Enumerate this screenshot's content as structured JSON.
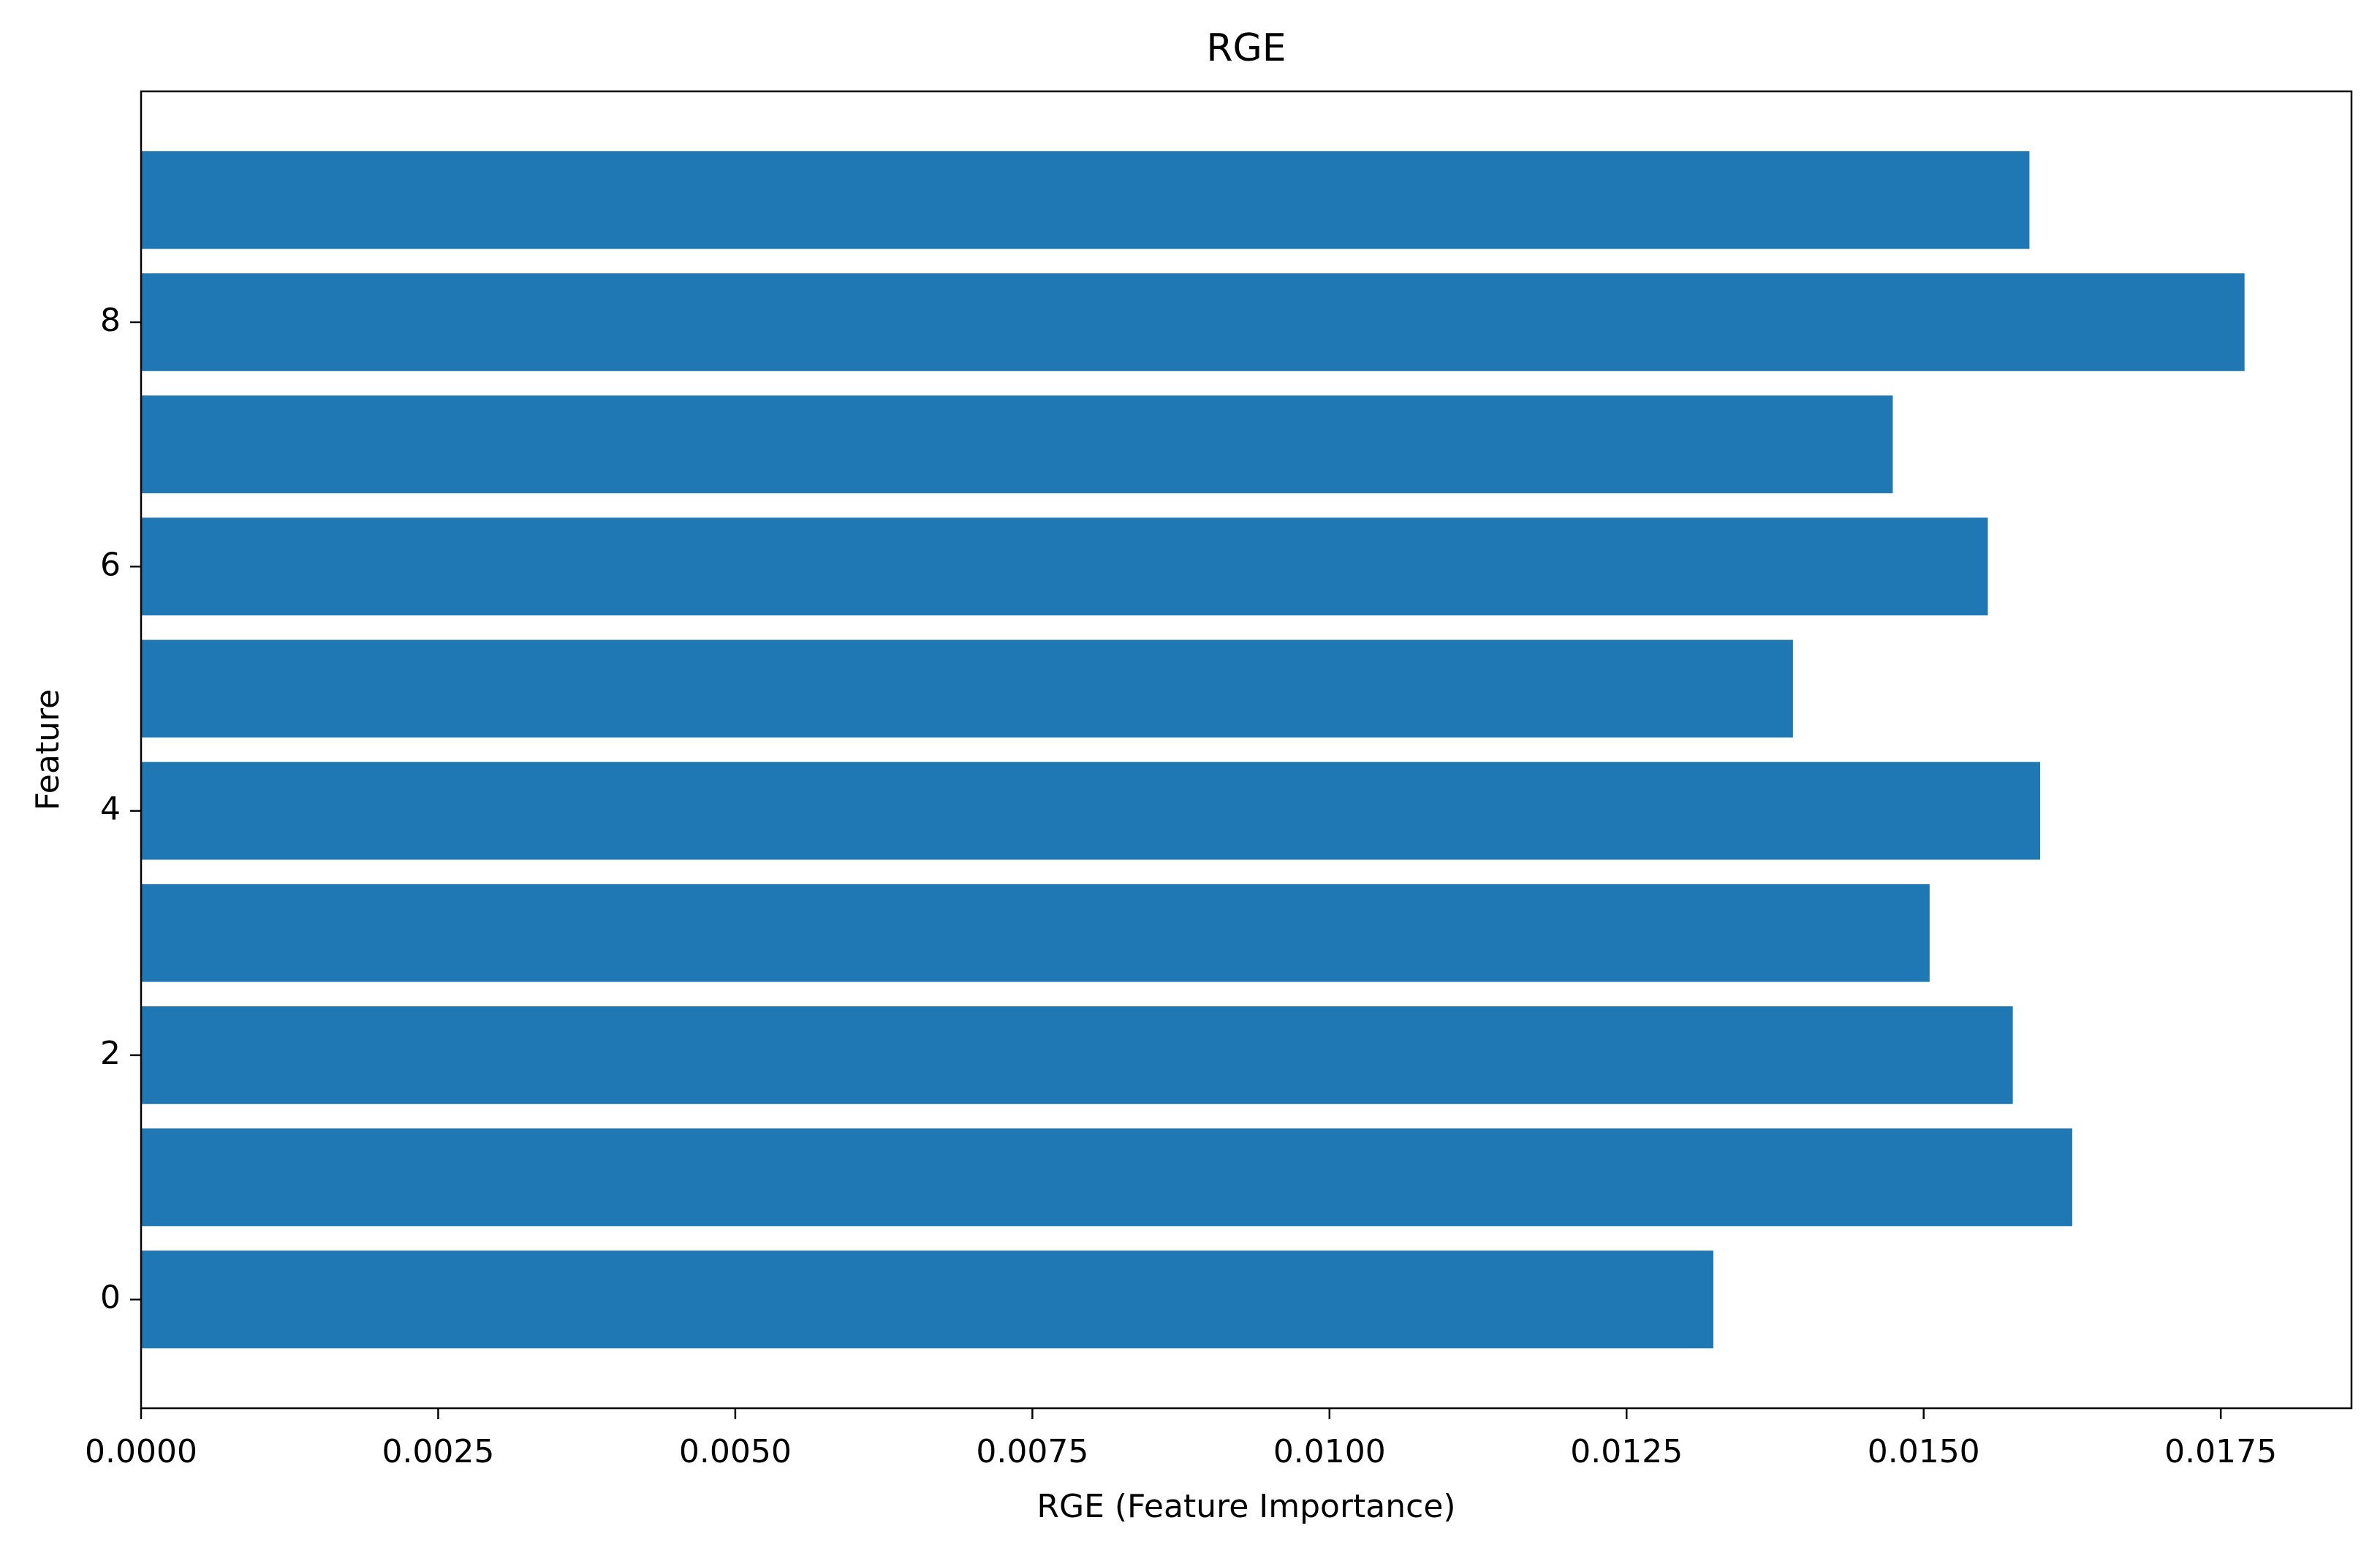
{
  "chart_data": {
    "type": "barh",
    "title": "RGE",
    "xlabel": "RGE (Feature Importance)",
    "ylabel": "Feature",
    "y": [
      0,
      1,
      2,
      3,
      4,
      5,
      6,
      7,
      8,
      9
    ],
    "values": [
      0.01323,
      0.01625,
      0.01575,
      0.01505,
      0.01598,
      0.0139,
      0.01554,
      0.01474,
      0.0177,
      0.01589
    ],
    "color": "#1f77b4",
    "xlim": [
      0,
      0.0186
    ],
    "ylim": [
      -0.89,
      9.89
    ],
    "xticks": [
      {
        "value": 0,
        "label": "0.0000"
      },
      {
        "value": 0.0025,
        "label": "0.0025"
      },
      {
        "value": 0.005,
        "label": "0.0050"
      },
      {
        "value": 0.0075,
        "label": "0.0075"
      },
      {
        "value": 0.01,
        "label": "0.0100"
      },
      {
        "value": 0.0125,
        "label": "0.0125"
      },
      {
        "value": 0.015,
        "label": "0.0150"
      },
      {
        "value": 0.0175,
        "label": "0.0175"
      }
    ],
    "yticks": [
      0,
      2,
      4,
      6,
      8
    ]
  }
}
